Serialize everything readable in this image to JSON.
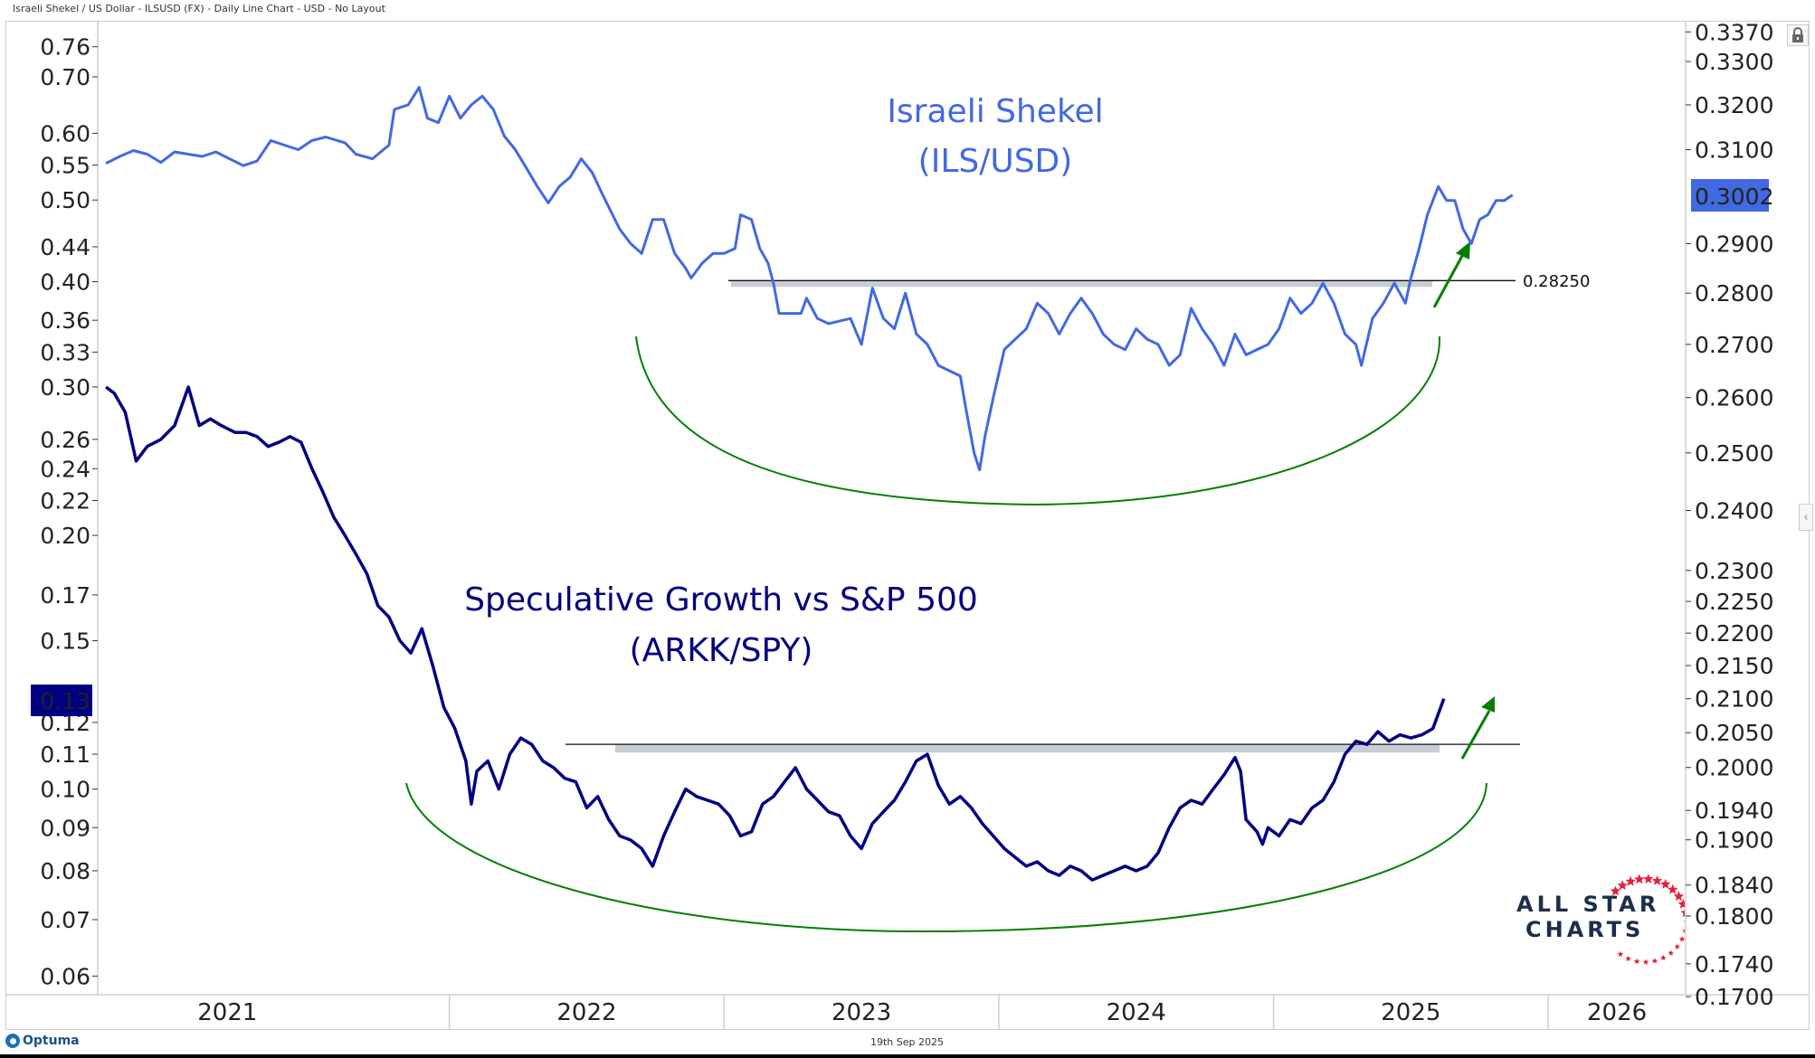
{
  "header": {
    "title": "Israeli Shekel / US Dollar - ILSUSD (FX) - Daily Line Chart - USD - No Layout"
  },
  "footer": {
    "date": "19th Sep 2025",
    "brand": "Optuma"
  },
  "logo": {
    "line1": "ALL STAR",
    "line2": "CHARTS"
  },
  "controls": {
    "lock_icon": "lock-icon",
    "collapse_icon": "chevron-left-icon",
    "collapse_glyph": "‹"
  },
  "colors": {
    "ils_series": "#4169e1",
    "arkk_series": "#000080",
    "ils_last_badge": "#4169e1",
    "arkk_last_badge": "#000080",
    "arc": "#008000",
    "arrow": "#008000",
    "resistance_band": "#c8cdd4",
    "logo_text": "#1c2e4a",
    "logo_stars": "#e8203a"
  },
  "chart_data": {
    "type": "line",
    "title": "Israeli Shekel / US Dollar - ILSUSD (FX) - Daily Line Chart - USD - No Layout",
    "xlabel": "",
    "x_tick_labels": [
      "2021",
      "2022",
      "2023",
      "2024",
      "2025",
      "2026"
    ],
    "x_range": [
      2020.72,
      2026.5
    ],
    "grid": false,
    "legend": "none",
    "axes": {
      "right": {
        "scale": "log",
        "series": "ILS/USD",
        "ticks": [
          "0.3370",
          "0.3300",
          "0.3200",
          "0.3100",
          "0.2900",
          "0.2800",
          "0.2700",
          "0.2600",
          "0.2500",
          "0.2400",
          "0.2300",
          "0.2250",
          "0.2200",
          "0.2150",
          "0.2100",
          "0.2050",
          "0.2000",
          "0.1940",
          "0.1900",
          "0.1840",
          "0.1800",
          "0.1740",
          "0.1700"
        ],
        "last_value_label": "0.3002"
      },
      "left": {
        "scale": "log",
        "series": "ARKK/SPY",
        "ticks": [
          "0.76",
          "0.70",
          "0.60",
          "0.55",
          "0.50",
          "0.44",
          "0.40",
          "0.36",
          "0.33",
          "0.30",
          "0.26",
          "0.24",
          "0.22",
          "0.20",
          "0.17",
          "0.15",
          "0.12",
          "0.11",
          "0.10",
          "0.09",
          "0.08",
          "0.07",
          "0.06"
        ],
        "last_value_label": "0.13"
      }
    },
    "annotations": [
      {
        "text_line1": "Israeli Shekel",
        "text_line2": "(ILS/USD)",
        "series": "ILS/USD"
      },
      {
        "text_line1": "Speculative Growth vs S&P 500",
        "text_line2": "(ARKK/SPY)",
        "series": "ARKK/SPY"
      },
      {
        "type": "horizontal_line",
        "series": "ILS/USD",
        "value": 0.2825,
        "label": "0.28250"
      },
      {
        "type": "horizontal_line",
        "series": "ARKK/SPY",
        "value": 0.113
      }
    ],
    "series": [
      {
        "name": "ILS/USD",
        "axis": "right",
        "points": [
          [
            2020.75,
            0.307
          ],
          [
            2020.8,
            0.3085
          ],
          [
            2020.85,
            0.3098
          ],
          [
            2020.9,
            0.309
          ],
          [
            2020.95,
            0.3072
          ],
          [
            2021.0,
            0.3095
          ],
          [
            2021.05,
            0.309
          ],
          [
            2021.1,
            0.3085
          ],
          [
            2021.15,
            0.3095
          ],
          [
            2021.2,
            0.308
          ],
          [
            2021.25,
            0.3065
          ],
          [
            2021.3,
            0.3075
          ],
          [
            2021.35,
            0.312
          ],
          [
            2021.4,
            0.311
          ],
          [
            2021.45,
            0.31
          ],
          [
            2021.5,
            0.312
          ],
          [
            2021.55,
            0.3128
          ],
          [
            2021.62,
            0.3115
          ],
          [
            2021.66,
            0.309
          ],
          [
            2021.72,
            0.308
          ],
          [
            2021.78,
            0.311
          ],
          [
            2021.8,
            0.319
          ],
          [
            2021.85,
            0.32
          ],
          [
            2021.89,
            0.324
          ],
          [
            2021.92,
            0.317
          ],
          [
            2021.96,
            0.316
          ],
          [
            2022.0,
            0.322
          ],
          [
            2022.04,
            0.317
          ],
          [
            2022.08,
            0.32
          ],
          [
            2022.12,
            0.322
          ],
          [
            2022.16,
            0.319
          ],
          [
            2022.2,
            0.313
          ],
          [
            2022.24,
            0.31
          ],
          [
            2022.28,
            0.306
          ],
          [
            2022.32,
            0.302
          ],
          [
            2022.36,
            0.2985
          ],
          [
            2022.4,
            0.302
          ],
          [
            2022.44,
            0.304
          ],
          [
            2022.48,
            0.308
          ],
          [
            2022.52,
            0.305
          ],
          [
            2022.56,
            0.3
          ],
          [
            2022.62,
            0.293
          ],
          [
            2022.66,
            0.29
          ],
          [
            2022.7,
            0.288
          ],
          [
            2022.74,
            0.295
          ],
          [
            2022.78,
            0.295
          ],
          [
            2022.82,
            0.288
          ],
          [
            2022.86,
            0.285
          ],
          [
            2022.88,
            0.283
          ],
          [
            2022.92,
            0.286
          ],
          [
            2022.96,
            0.288
          ],
          [
            2023.0,
            0.288
          ],
          [
            2023.04,
            0.289
          ],
          [
            2023.06,
            0.296
          ],
          [
            2023.1,
            0.295
          ],
          [
            2023.13,
            0.289
          ],
          [
            2023.16,
            0.286
          ],
          [
            2023.18,
            0.282
          ],
          [
            2023.2,
            0.276
          ],
          [
            2023.24,
            0.276
          ],
          [
            2023.28,
            0.276
          ],
          [
            2023.3,
            0.279
          ],
          [
            2023.34,
            0.275
          ],
          [
            2023.38,
            0.274
          ],
          [
            2023.42,
            0.2745
          ],
          [
            2023.46,
            0.275
          ],
          [
            2023.5,
            0.27
          ],
          [
            2023.54,
            0.281
          ],
          [
            2023.58,
            0.275
          ],
          [
            2023.62,
            0.273
          ],
          [
            2023.66,
            0.28
          ],
          [
            2023.7,
            0.272
          ],
          [
            2023.74,
            0.27
          ],
          [
            2023.78,
            0.266
          ],
          [
            2023.82,
            0.265
          ],
          [
            2023.86,
            0.264
          ],
          [
            2023.88,
            0.258
          ],
          [
            2023.91,
            0.25
          ],
          [
            2023.93,
            0.247
          ],
          [
            2023.95,
            0.253
          ],
          [
            2023.98,
            0.26
          ],
          [
            2024.02,
            0.269
          ],
          [
            2024.06,
            0.271
          ],
          [
            2024.1,
            0.273
          ],
          [
            2024.14,
            0.278
          ],
          [
            2024.18,
            0.276
          ],
          [
            2024.22,
            0.272
          ],
          [
            2024.26,
            0.276
          ],
          [
            2024.3,
            0.279
          ],
          [
            2024.34,
            0.276
          ],
          [
            2024.38,
            0.272
          ],
          [
            2024.42,
            0.27
          ],
          [
            2024.46,
            0.269
          ],
          [
            2024.5,
            0.273
          ],
          [
            2024.54,
            0.271
          ],
          [
            2024.58,
            0.27
          ],
          [
            2024.62,
            0.266
          ],
          [
            2024.66,
            0.268
          ],
          [
            2024.7,
            0.277
          ],
          [
            2024.74,
            0.273
          ],
          [
            2024.78,
            0.27
          ],
          [
            2024.82,
            0.266
          ],
          [
            2024.86,
            0.272
          ],
          [
            2024.9,
            0.268
          ],
          [
            2024.94,
            0.269
          ],
          [
            2024.98,
            0.27
          ],
          [
            2025.02,
            0.273
          ],
          [
            2025.06,
            0.279
          ],
          [
            2025.1,
            0.276
          ],
          [
            2025.14,
            0.278
          ],
          [
            2025.18,
            0.282
          ],
          [
            2025.22,
            0.278
          ],
          [
            2025.26,
            0.272
          ],
          [
            2025.3,
            0.27
          ],
          [
            2025.32,
            0.266
          ],
          [
            2025.36,
            0.275
          ],
          [
            2025.4,
            0.278
          ],
          [
            2025.44,
            0.282
          ],
          [
            2025.46,
            0.28
          ],
          [
            2025.48,
            0.278
          ],
          [
            2025.5,
            0.283
          ],
          [
            2025.53,
            0.289
          ],
          [
            2025.56,
            0.296
          ],
          [
            2025.6,
            0.302
          ],
          [
            2025.63,
            0.299
          ],
          [
            2025.66,
            0.299
          ],
          [
            2025.69,
            0.293
          ],
          [
            2025.72,
            0.29
          ],
          [
            2025.75,
            0.295
          ],
          [
            2025.78,
            0.296
          ],
          [
            2025.81,
            0.299
          ],
          [
            2025.84,
            0.299
          ],
          [
            2025.87,
            0.3002
          ]
        ]
      },
      {
        "name": "ARKK/SPY",
        "axis": "left",
        "points": [
          [
            2020.75,
            0.3
          ],
          [
            2020.78,
            0.295
          ],
          [
            2020.82,
            0.28
          ],
          [
            2020.86,
            0.245
          ],
          [
            2020.9,
            0.255
          ],
          [
            2020.95,
            0.26
          ],
          [
            2021.0,
            0.27
          ],
          [
            2021.05,
            0.3
          ],
          [
            2021.09,
            0.27
          ],
          [
            2021.13,
            0.275
          ],
          [
            2021.17,
            0.27
          ],
          [
            2021.22,
            0.265
          ],
          [
            2021.26,
            0.265
          ],
          [
            2021.3,
            0.262
          ],
          [
            2021.34,
            0.255
          ],
          [
            2021.38,
            0.258
          ],
          [
            2021.42,
            0.262
          ],
          [
            2021.46,
            0.258
          ],
          [
            2021.5,
            0.24
          ],
          [
            2021.54,
            0.225
          ],
          [
            2021.58,
            0.21
          ],
          [
            2021.62,
            0.2
          ],
          [
            2021.66,
            0.19
          ],
          [
            2021.7,
            0.18
          ],
          [
            2021.74,
            0.165
          ],
          [
            2021.78,
            0.16
          ],
          [
            2021.82,
            0.15
          ],
          [
            2021.86,
            0.145
          ],
          [
            2021.9,
            0.155
          ],
          [
            2021.94,
            0.14
          ],
          [
            2021.98,
            0.125
          ],
          [
            2022.02,
            0.118
          ],
          [
            2022.06,
            0.108
          ],
          [
            2022.08,
            0.096
          ],
          [
            2022.1,
            0.105
          ],
          [
            2022.14,
            0.108
          ],
          [
            2022.18,
            0.1
          ],
          [
            2022.22,
            0.11
          ],
          [
            2022.26,
            0.115
          ],
          [
            2022.3,
            0.113
          ],
          [
            2022.34,
            0.108
          ],
          [
            2022.38,
            0.106
          ],
          [
            2022.42,
            0.103
          ],
          [
            2022.46,
            0.102
          ],
          [
            2022.5,
            0.095
          ],
          [
            2022.54,
            0.098
          ],
          [
            2022.58,
            0.092
          ],
          [
            2022.62,
            0.088
          ],
          [
            2022.66,
            0.087
          ],
          [
            2022.7,
            0.085
          ],
          [
            2022.74,
            0.081
          ],
          [
            2022.78,
            0.088
          ],
          [
            2022.82,
            0.094
          ],
          [
            2022.86,
            0.1
          ],
          [
            2022.9,
            0.098
          ],
          [
            2022.94,
            0.097
          ],
          [
            2022.98,
            0.096
          ],
          [
            2023.02,
            0.093
          ],
          [
            2023.06,
            0.088
          ],
          [
            2023.1,
            0.089
          ],
          [
            2023.14,
            0.096
          ],
          [
            2023.18,
            0.098
          ],
          [
            2023.22,
            0.102
          ],
          [
            2023.26,
            0.106
          ],
          [
            2023.3,
            0.1
          ],
          [
            2023.34,
            0.097
          ],
          [
            2023.38,
            0.094
          ],
          [
            2023.42,
            0.093
          ],
          [
            2023.46,
            0.088
          ],
          [
            2023.5,
            0.085
          ],
          [
            2023.54,
            0.091
          ],
          [
            2023.58,
            0.094
          ],
          [
            2023.62,
            0.097
          ],
          [
            2023.66,
            0.102
          ],
          [
            2023.7,
            0.108
          ],
          [
            2023.74,
            0.11
          ],
          [
            2023.78,
            0.101
          ],
          [
            2023.82,
            0.096
          ],
          [
            2023.86,
            0.098
          ],
          [
            2023.9,
            0.095
          ],
          [
            2023.94,
            0.091
          ],
          [
            2023.98,
            0.088
          ],
          [
            2024.02,
            0.085
          ],
          [
            2024.06,
            0.083
          ],
          [
            2024.1,
            0.081
          ],
          [
            2024.14,
            0.082
          ],
          [
            2024.18,
            0.08
          ],
          [
            2024.22,
            0.079
          ],
          [
            2024.26,
            0.081
          ],
          [
            2024.3,
            0.08
          ],
          [
            2024.34,
            0.078
          ],
          [
            2024.38,
            0.079
          ],
          [
            2024.42,
            0.08
          ],
          [
            2024.46,
            0.081
          ],
          [
            2024.5,
            0.08
          ],
          [
            2024.54,
            0.081
          ],
          [
            2024.58,
            0.084
          ],
          [
            2024.62,
            0.09
          ],
          [
            2024.66,
            0.095
          ],
          [
            2024.7,
            0.097
          ],
          [
            2024.74,
            0.096
          ],
          [
            2024.78,
            0.1
          ],
          [
            2024.82,
            0.104
          ],
          [
            2024.86,
            0.109
          ],
          [
            2024.88,
            0.105
          ],
          [
            2024.9,
            0.092
          ],
          [
            2024.94,
            0.089
          ],
          [
            2024.96,
            0.086
          ],
          [
            2024.98,
            0.09
          ],
          [
            2025.02,
            0.088
          ],
          [
            2025.06,
            0.092
          ],
          [
            2025.1,
            0.091
          ],
          [
            2025.14,
            0.095
          ],
          [
            2025.18,
            0.097
          ],
          [
            2025.22,
            0.102
          ],
          [
            2025.26,
            0.11
          ],
          [
            2025.3,
            0.114
          ],
          [
            2025.34,
            0.113
          ],
          [
            2025.38,
            0.117
          ],
          [
            2025.42,
            0.114
          ],
          [
            2025.46,
            0.116
          ],
          [
            2025.5,
            0.115
          ],
          [
            2025.54,
            0.116
          ],
          [
            2025.58,
            0.118
          ],
          [
            2025.62,
            0.128
          ]
        ]
      }
    ]
  }
}
